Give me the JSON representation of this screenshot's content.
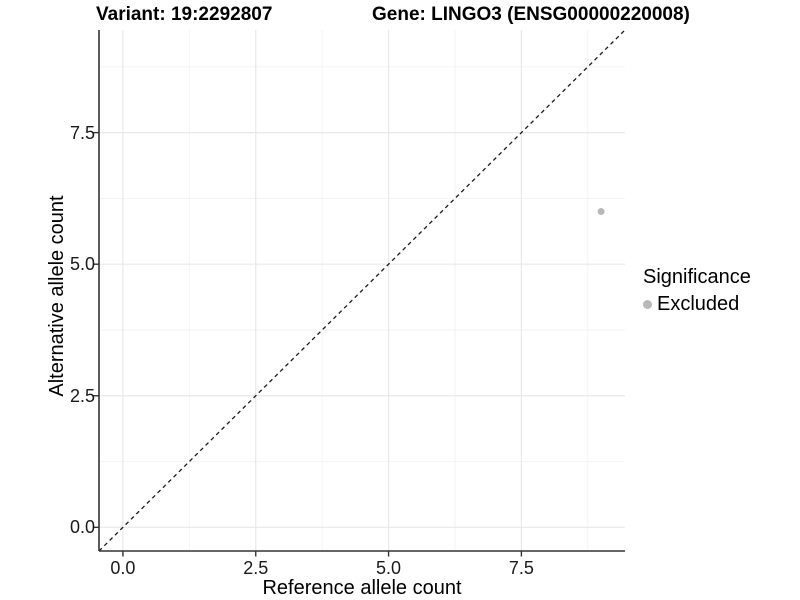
{
  "header": {
    "variant_title": "Variant: 19:2292807",
    "gene_title": "Gene: LINGO3 (ENSG00000220008)"
  },
  "chart_data": {
    "type": "scatter",
    "xlabel": "Reference allele count",
    "ylabel": "Alternative allele count",
    "xlim": [
      -0.45,
      9.45
    ],
    "ylim": [
      -0.45,
      9.45
    ],
    "x_ticks": {
      "values": [
        0,
        2.5,
        5,
        7.5
      ],
      "labels": [
        "0.0",
        "2.5",
        "5.0",
        "7.5"
      ]
    },
    "y_ticks": {
      "values": [
        0,
        2.5,
        5,
        7.5
      ],
      "labels": [
        "0.0",
        "2.5",
        "5.0",
        "7.5"
      ]
    },
    "x_minor_ticks": [
      1.25,
      3.75,
      6.25,
      8.75
    ],
    "y_minor_ticks": [
      1.25,
      3.75,
      6.25,
      8.75
    ],
    "grid": "major+minor",
    "legend": {
      "title": "Significance",
      "position": "right"
    },
    "series": [
      {
        "name": "Excluded",
        "color": "#b8b8b8",
        "marker": "circle",
        "size": 3.5,
        "points": [
          {
            "x": 9,
            "y": 6
          }
        ]
      }
    ],
    "reference_line": {
      "type": "identity",
      "style": "dashed",
      "color": "#1a1a1a"
    },
    "colors": {
      "background": "#ffffff",
      "grid_major": "#e8e8e8",
      "grid_minor": "#f2f2f2",
      "axis_line": "#333333",
      "tick_text": "#1a1a1a"
    }
  }
}
